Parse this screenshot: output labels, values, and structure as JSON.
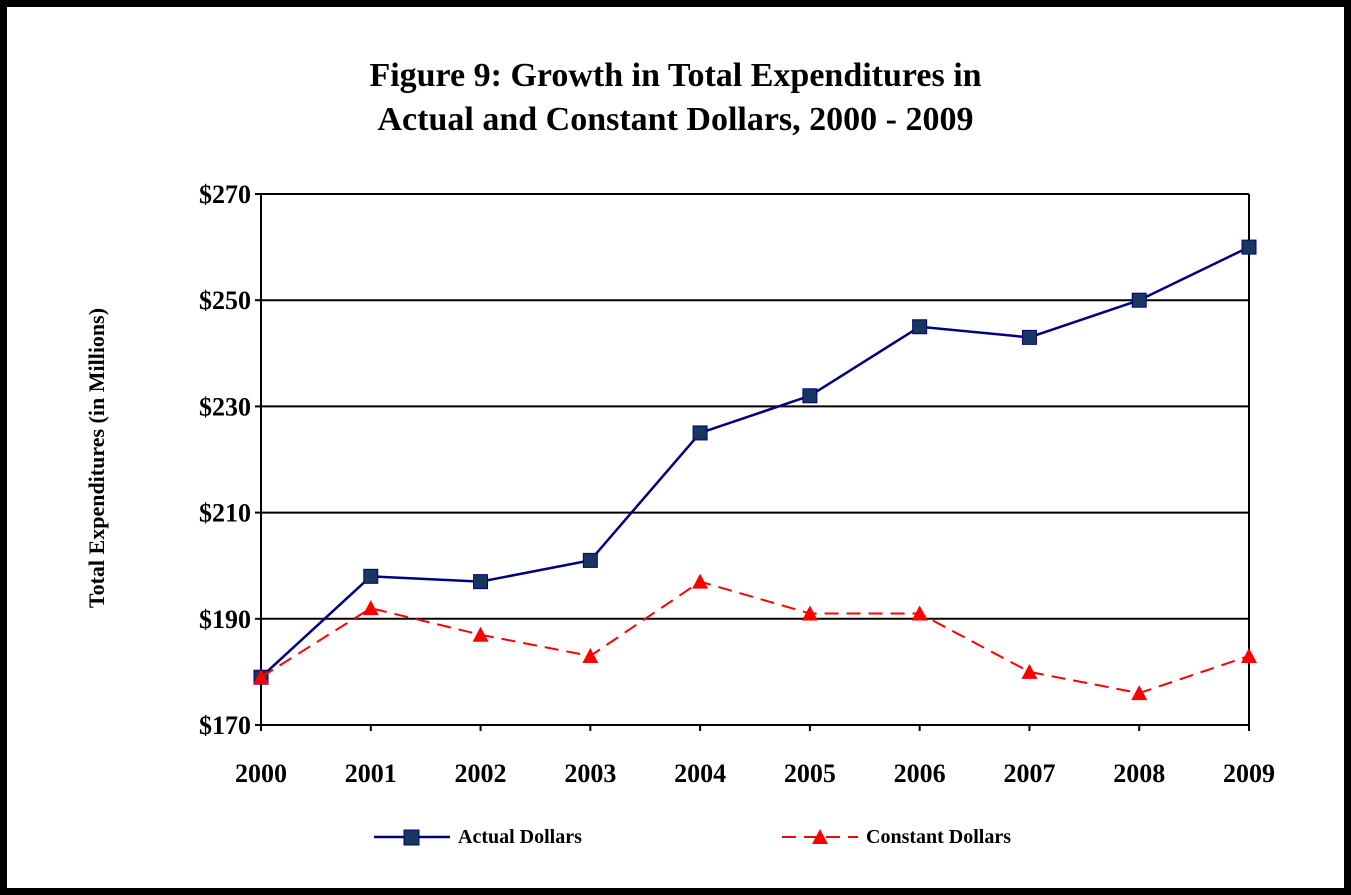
{
  "title_lines": [
    "Figure 9:  Growth in Total Expenditures in",
    "Actual and Constant Dollars, 2000 - 2009"
  ],
  "chart_data": {
    "type": "line",
    "title": "Figure 9:  Growth in Total Expenditures in Actual and Constant Dollars, 2000 - 2009",
    "xlabel": "",
    "ylabel": "Total Expenditures (in Millions)",
    "x": [
      "2000",
      "2001",
      "2002",
      "2003",
      "2004",
      "2005",
      "2006",
      "2007",
      "2008",
      "2009"
    ],
    "ylim": [
      170,
      270
    ],
    "yticks": [
      170,
      190,
      210,
      230,
      250,
      270
    ],
    "ytick_labels": [
      "$170",
      "$190",
      "$210",
      "$230",
      "$250",
      "$270"
    ],
    "grid": true,
    "legend_position": "bottom",
    "series": [
      {
        "name": "Actual Dollars",
        "color": "#000080",
        "marker": "square",
        "line": "solid",
        "values": [
          179,
          198,
          197,
          201,
          225,
          232,
          245,
          243,
          250,
          260
        ]
      },
      {
        "name": "Constant Dollars",
        "color": "#ff0000",
        "marker": "triangle",
        "line": "dashed",
        "values": [
          179,
          192,
          187,
          183,
          197,
          191,
          191,
          180,
          176,
          183
        ]
      }
    ]
  }
}
